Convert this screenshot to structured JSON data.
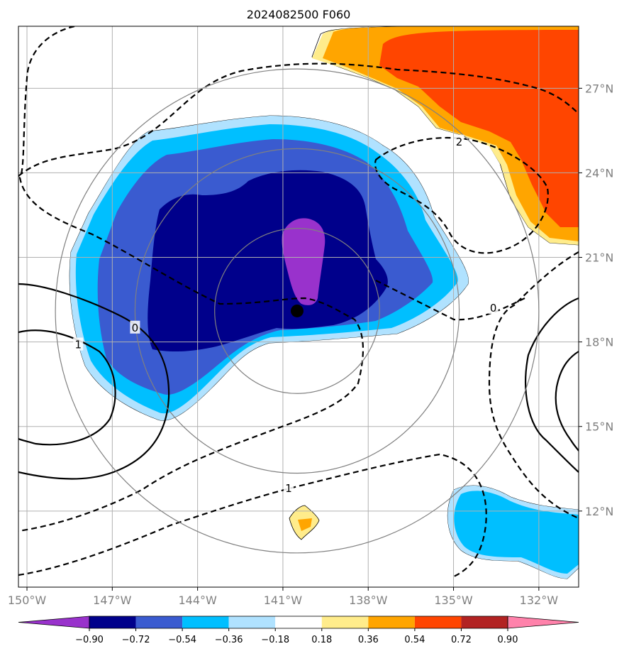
{
  "title": "2024082500 F060",
  "map": {
    "lon_range": [
      -150.3,
      -130.6
    ],
    "lat_range": [
      9.3,
      29.2
    ],
    "lon_ticks": [
      {
        "value": -150,
        "label": "150°W"
      },
      {
        "value": -147,
        "label": "147°W"
      },
      {
        "value": -144,
        "label": "144°W"
      },
      {
        "value": -141,
        "label": "141°W"
      },
      {
        "value": -138,
        "label": "138°W"
      },
      {
        "value": -135,
        "label": "135°W"
      },
      {
        "value": -132,
        "label": "132°W"
      }
    ],
    "lat_ticks": [
      {
        "value": 12,
        "label": "12°N"
      },
      {
        "value": 15,
        "label": "15°N"
      },
      {
        "value": 18,
        "label": "18°N"
      },
      {
        "value": 21,
        "label": "21°N"
      },
      {
        "value": 24,
        "label": "24°N"
      },
      {
        "value": 27,
        "label": "27°N"
      }
    ],
    "grid": true,
    "storm_center": {
      "lon": -140.5,
      "lat": 19.1
    },
    "range_rings_deg": [
      2.9,
      5.7,
      8.5
    ],
    "contour_labels": [
      {
        "text": "0",
        "lon": -146.2,
        "lat": 18.5
      },
      {
        "text": "1",
        "lon": -148.2,
        "lat": 17.9
      },
      {
        "text": "2",
        "lon": -134.8,
        "lat": 25.1
      },
      {
        "text": "0",
        "lon": -133.6,
        "lat": 19.2
      },
      {
        "text": "1",
        "lon": -140.8,
        "lat": 12.8
      }
    ]
  },
  "colorbar": {
    "boundaries": [
      "−0.90",
      "−0.72",
      "−0.54",
      "−0.36",
      "−0.18",
      "0.18",
      "0.36",
      "0.54",
      "0.72",
      "0.90"
    ],
    "colors": [
      "#9932CC",
      "#00008B",
      "#3A5BD0",
      "#00BFFF",
      "#B0E2FF",
      "#FFFFFF",
      "#FFEC8B",
      "#FFA500",
      "#FF4500",
      "#B22222",
      "#FF82AB"
    ]
  }
}
